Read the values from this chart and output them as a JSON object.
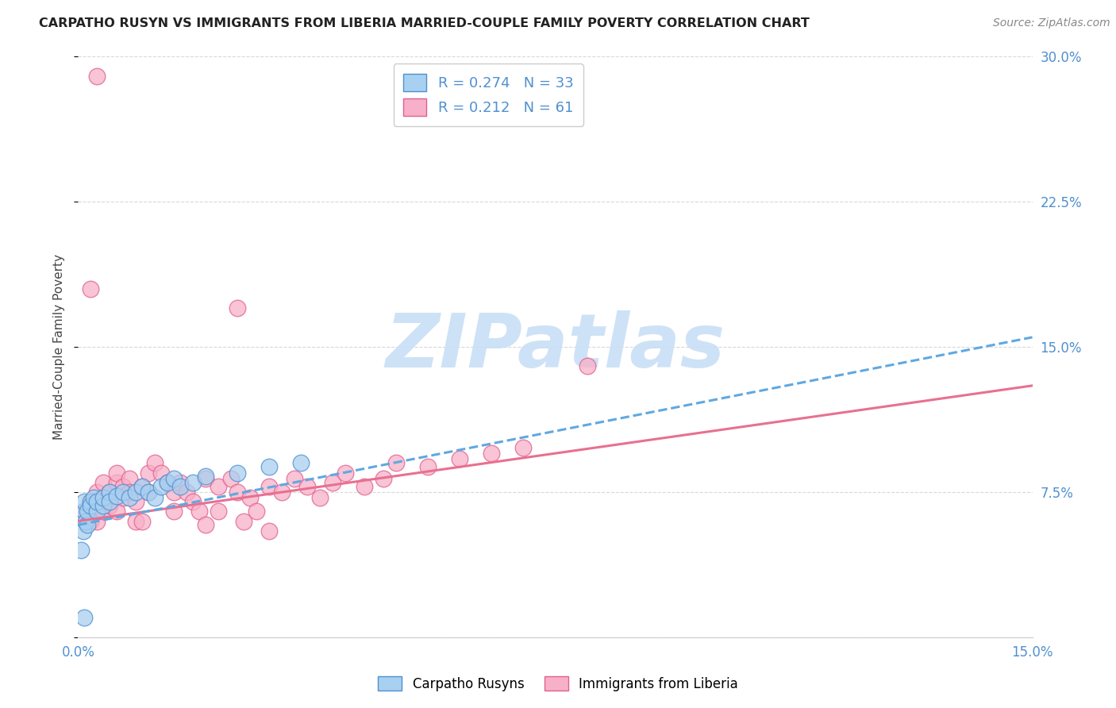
{
  "title": "CARPATHO RUSYN VS IMMIGRANTS FROM LIBERIA MARRIED-COUPLE FAMILY POVERTY CORRELATION CHART",
  "source": "Source: ZipAtlas.com",
  "ylabel": "Married-Couple Family Poverty",
  "xlim": [
    0.0,
    0.15
  ],
  "ylim": [
    0.0,
    0.3
  ],
  "blue_R": 0.274,
  "blue_N": 33,
  "pink_R": 0.212,
  "pink_N": 61,
  "blue_color": "#a8d0f0",
  "pink_color": "#f8b0c8",
  "blue_edge_color": "#5090d0",
  "pink_edge_color": "#e06090",
  "blue_line_color": "#60a8e0",
  "pink_line_color": "#e87090",
  "blue_scatter": [
    [
      0.0005,
      0.045
    ],
    [
      0.0008,
      0.055
    ],
    [
      0.001,
      0.065
    ],
    [
      0.001,
      0.07
    ],
    [
      0.0012,
      0.06
    ],
    [
      0.0015,
      0.058
    ],
    [
      0.0015,
      0.065
    ],
    [
      0.002,
      0.07
    ],
    [
      0.002,
      0.068
    ],
    [
      0.0025,
      0.072
    ],
    [
      0.003,
      0.065
    ],
    [
      0.003,
      0.07
    ],
    [
      0.004,
      0.068
    ],
    [
      0.004,
      0.072
    ],
    [
      0.005,
      0.075
    ],
    [
      0.005,
      0.07
    ],
    [
      0.006,
      0.073
    ],
    [
      0.007,
      0.075
    ],
    [
      0.008,
      0.072
    ],
    [
      0.009,
      0.075
    ],
    [
      0.01,
      0.078
    ],
    [
      0.011,
      0.075
    ],
    [
      0.012,
      0.072
    ],
    [
      0.013,
      0.078
    ],
    [
      0.014,
      0.08
    ],
    [
      0.015,
      0.082
    ],
    [
      0.016,
      0.078
    ],
    [
      0.018,
      0.08
    ],
    [
      0.02,
      0.083
    ],
    [
      0.025,
      0.085
    ],
    [
      0.03,
      0.088
    ],
    [
      0.035,
      0.09
    ],
    [
      0.001,
      0.01
    ]
  ],
  "pink_scatter": [
    [
      0.001,
      0.065
    ],
    [
      0.002,
      0.07
    ],
    [
      0.002,
      0.06
    ],
    [
      0.003,
      0.075
    ],
    [
      0.003,
      0.068
    ],
    [
      0.003,
      0.06
    ],
    [
      0.004,
      0.072
    ],
    [
      0.004,
      0.08
    ],
    [
      0.004,
      0.065
    ],
    [
      0.005,
      0.075
    ],
    [
      0.005,
      0.068
    ],
    [
      0.006,
      0.08
    ],
    [
      0.006,
      0.085
    ],
    [
      0.006,
      0.065
    ],
    [
      0.007,
      0.078
    ],
    [
      0.007,
      0.072
    ],
    [
      0.008,
      0.082
    ],
    [
      0.008,
      0.075
    ],
    [
      0.009,
      0.07
    ],
    [
      0.009,
      0.06
    ],
    [
      0.01,
      0.078
    ],
    [
      0.01,
      0.06
    ],
    [
      0.011,
      0.085
    ],
    [
      0.011,
      0.075
    ],
    [
      0.012,
      0.09
    ],
    [
      0.013,
      0.085
    ],
    [
      0.014,
      0.08
    ],
    [
      0.015,
      0.075
    ],
    [
      0.015,
      0.065
    ],
    [
      0.016,
      0.08
    ],
    [
      0.017,
      0.075
    ],
    [
      0.018,
      0.07
    ],
    [
      0.019,
      0.065
    ],
    [
      0.02,
      0.082
    ],
    [
      0.02,
      0.058
    ],
    [
      0.022,
      0.078
    ],
    [
      0.022,
      0.065
    ],
    [
      0.024,
      0.082
    ],
    [
      0.025,
      0.075
    ],
    [
      0.026,
      0.06
    ],
    [
      0.027,
      0.072
    ],
    [
      0.028,
      0.065
    ],
    [
      0.03,
      0.078
    ],
    [
      0.03,
      0.055
    ],
    [
      0.032,
      0.075
    ],
    [
      0.034,
      0.082
    ],
    [
      0.036,
      0.078
    ],
    [
      0.038,
      0.072
    ],
    [
      0.04,
      0.08
    ],
    [
      0.042,
      0.085
    ],
    [
      0.045,
      0.078
    ],
    [
      0.048,
      0.082
    ],
    [
      0.05,
      0.09
    ],
    [
      0.055,
      0.088
    ],
    [
      0.06,
      0.092
    ],
    [
      0.065,
      0.095
    ],
    [
      0.07,
      0.098
    ],
    [
      0.08,
      0.14
    ],
    [
      0.002,
      0.18
    ],
    [
      0.025,
      0.17
    ],
    [
      0.003,
      0.29
    ]
  ],
  "blue_trend": [
    0.0,
    0.15,
    0.058,
    0.155
  ],
  "pink_trend": [
    0.0,
    0.15,
    0.06,
    0.13
  ],
  "watermark_text": "ZIPatlas",
  "watermark_color": "#c8dff5",
  "background_color": "#ffffff",
  "grid_color": "#d8d8d8",
  "tick_color": "#5090d0",
  "title_color": "#222222",
  "source_color": "#888888",
  "ylabel_color": "#444444"
}
